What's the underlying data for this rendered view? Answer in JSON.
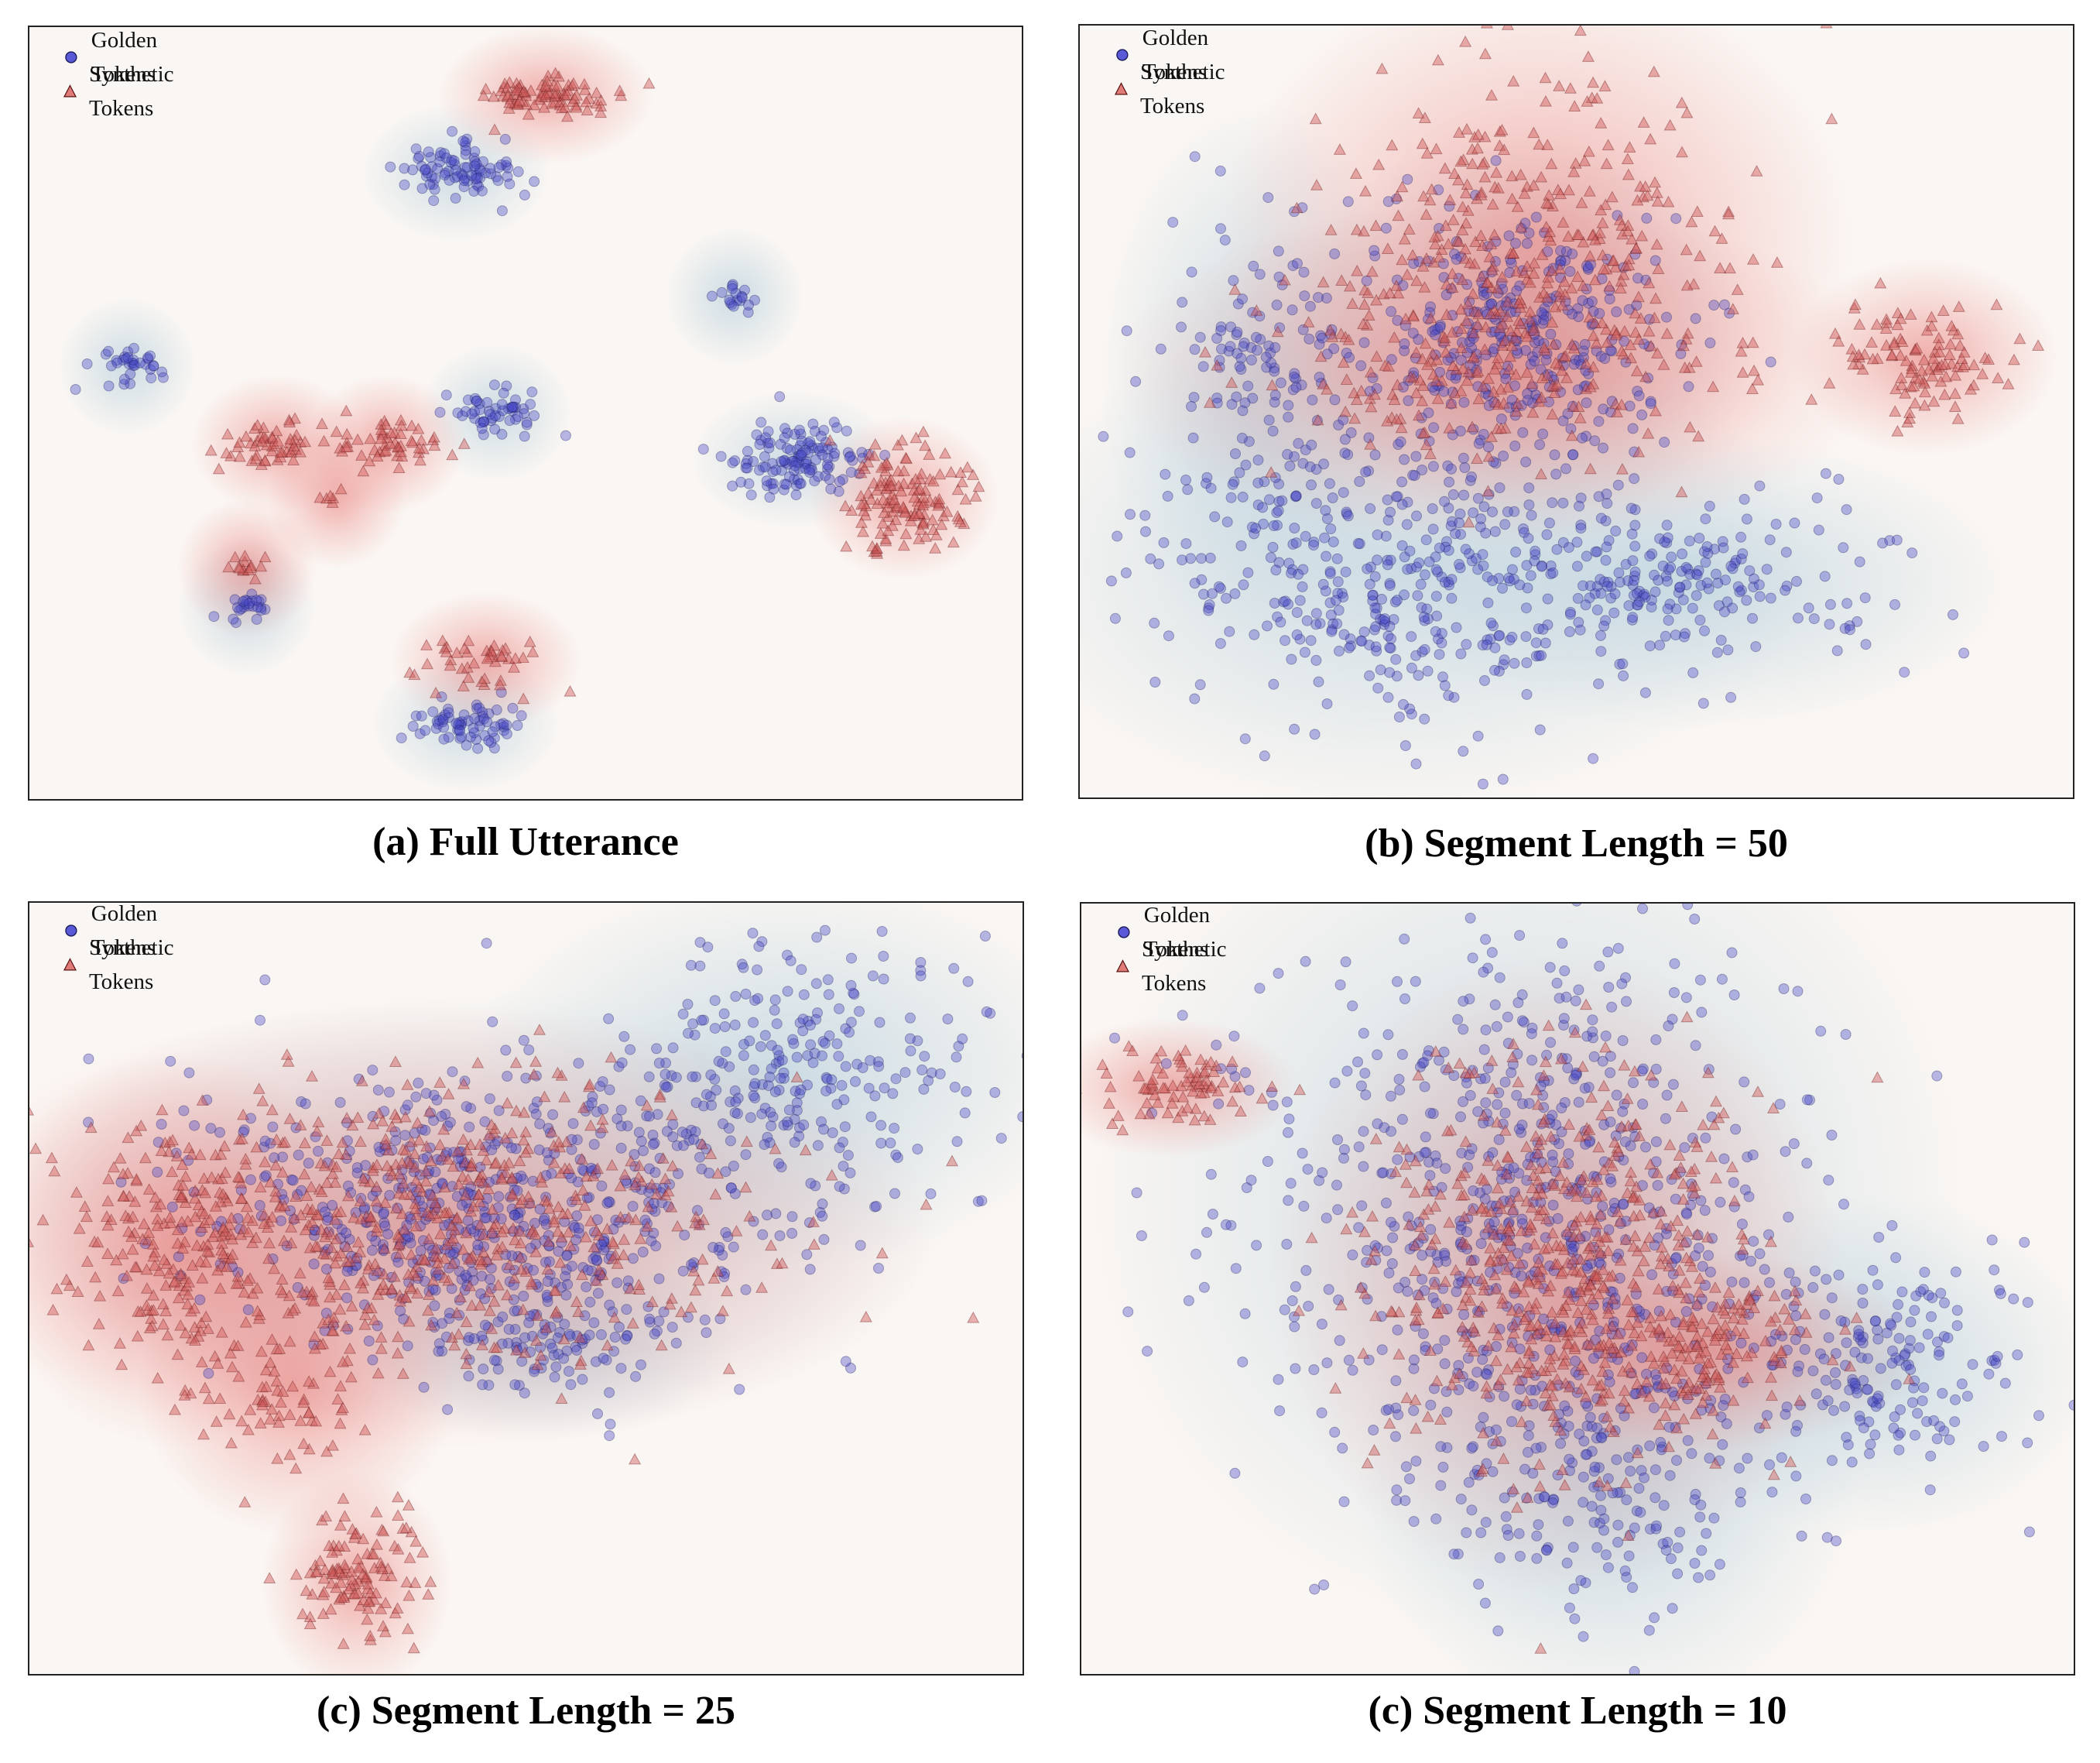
{
  "figure": {
    "legend": {
      "golden_label": "Golden Tokens",
      "synthetic_label": "Synthetic Tokens"
    },
    "colors": {
      "golden": "#4a4ac8",
      "golden_edge": "#1a1a5a",
      "synthetic": "#d05c5c",
      "synthetic_edge": "#6a1a1a",
      "background": "#faf6f3",
      "density_blue": "#a9c8d8",
      "density_red": "#e8736f"
    },
    "marker_shapes": {
      "golden": "circle-icon",
      "synthetic": "triangle-icon"
    }
  },
  "chart_data": [
    {
      "type": "scatter",
      "title": "(a) Full Utterance",
      "xlabel": "",
      "ylabel": "",
      "xlim": [
        0,
        100
      ],
      "ylim": [
        0,
        100
      ],
      "legend_loc": "top-left",
      "series": [
        {
          "name": "Golden Tokens",
          "marker": "circle",
          "clusters": [
            {
              "cx": 43,
              "cy": 81,
              "sx": 3.0,
              "sy": 1.8,
              "n": 90
            },
            {
              "cx": 10,
              "cy": 56,
              "sx": 1.6,
              "sy": 1.1,
              "n": 35
            },
            {
              "cx": 47,
              "cy": 50,
              "sx": 2.4,
              "sy": 1.4,
              "n": 55
            },
            {
              "cx": 71,
              "cy": 65,
              "sx": 1.0,
              "sy": 0.8,
              "n": 18
            },
            {
              "cx": 77,
              "cy": 44,
              "sx": 3.3,
              "sy": 2.2,
              "n": 130
            },
            {
              "cx": 22,
              "cy": 25,
              "sx": 1.0,
              "sy": 1.0,
              "n": 25
            },
            {
              "cx": 44,
              "cy": 10,
              "sx": 3.0,
              "sy": 1.5,
              "n": 70
            }
          ]
        },
        {
          "name": "Synthetic Tokens",
          "marker": "triangle",
          "clusters": [
            {
              "cx": 52,
              "cy": 91,
              "sx": 3.4,
              "sy": 1.3,
              "n": 90
            },
            {
              "cx": 25,
              "cy": 46,
              "sx": 2.7,
              "sy": 1.3,
              "n": 55
            },
            {
              "cx": 36,
              "cy": 46,
              "sx": 2.5,
              "sy": 1.5,
              "n": 55
            },
            {
              "cx": 31,
              "cy": 39,
              "sx": 0.6,
              "sy": 0.5,
              "n": 6
            },
            {
              "cx": 88,
              "cy": 39,
              "sx": 3.0,
              "sy": 3.3,
              "n": 140
            },
            {
              "cx": 22,
              "cy": 30,
              "sx": 1.1,
              "sy": 1.0,
              "n": 14
            },
            {
              "cx": 46,
              "cy": 18,
              "sx": 3.0,
              "sy": 2.0,
              "n": 45
            }
          ]
        }
      ]
    },
    {
      "type": "scatter",
      "title": "(b) Segment Length = 50",
      "xlabel": "",
      "ylabel": "",
      "xlim": [
        0,
        100
      ],
      "ylim": [
        0,
        100
      ],
      "legend_loc": "top-left",
      "series": [
        {
          "name": "Golden Tokens",
          "marker": "circle",
          "clusters": [
            {
              "cx": 44,
              "cy": 60,
              "sx": 7.5,
              "sy": 8.0,
              "n": 320
            },
            {
              "cx": 32,
              "cy": 30,
              "sx": 13.0,
              "sy": 10.0,
              "n": 420
            },
            {
              "cx": 62,
              "cy": 28,
              "sx": 10.0,
              "sy": 6.0,
              "n": 200
            },
            {
              "cx": 18,
              "cy": 55,
              "sx": 5.0,
              "sy": 11.0,
              "n": 130
            }
          ]
        },
        {
          "name": "Synthetic Tokens",
          "marker": "triangle",
          "clusters": [
            {
              "cx": 46,
              "cy": 72,
              "sx": 10.0,
              "sy": 11.0,
              "n": 360
            },
            {
              "cx": 42,
              "cy": 55,
              "sx": 12.0,
              "sy": 7.0,
              "n": 160
            },
            {
              "cx": 85,
              "cy": 57,
              "sx": 4.2,
              "sy": 4.0,
              "n": 110
            }
          ]
        }
      ]
    },
    {
      "type": "scatter",
      "title": "(c) Segment Length = 25",
      "xlabel": "",
      "ylabel": "",
      "xlim": [
        0,
        100
      ],
      "ylim": [
        0,
        100
      ],
      "legend_loc": "top-left",
      "series": [
        {
          "name": "Golden Tokens",
          "marker": "circle",
          "clusters": [
            {
              "cx": 45,
              "cy": 60,
              "sx": 15.0,
              "sy": 9.0,
              "n": 620
            },
            {
              "cx": 76,
              "cy": 78,
              "sx": 10.0,
              "sy": 8.0,
              "n": 260
            },
            {
              "cx": 52,
              "cy": 43,
              "sx": 6.0,
              "sy": 4.0,
              "n": 90
            }
          ]
        },
        {
          "name": "Synthetic Tokens",
          "marker": "triangle",
          "clusters": [
            {
              "cx": 40,
              "cy": 58,
              "sx": 16.0,
              "sy": 9.0,
              "n": 620
            },
            {
              "cx": 15,
              "cy": 55,
              "sx": 6.0,
              "sy": 8.0,
              "n": 180
            },
            {
              "cx": 27,
              "cy": 37,
              "sx": 5.0,
              "sy": 6.0,
              "n": 70
            },
            {
              "cx": 33,
              "cy": 12,
              "sx": 3.0,
              "sy": 4.5,
              "n": 120
            }
          ]
        }
      ]
    },
    {
      "type": "scatter",
      "title": "(c) Segment Length = 10",
      "xlabel": "",
      "ylabel": "",
      "xlim": [
        0,
        100
      ],
      "ylim": [
        0,
        100
      ],
      "legend_loc": "top-left",
      "series": [
        {
          "name": "Golden Tokens",
          "marker": "circle",
          "clusters": [
            {
              "cx": 45,
              "cy": 62,
              "sx": 14.0,
              "sy": 18.0,
              "n": 720
            },
            {
              "cx": 80,
              "cy": 40,
              "sx": 7.0,
              "sy": 7.0,
              "n": 180
            },
            {
              "cx": 53,
              "cy": 25,
              "sx": 8.0,
              "sy": 10.0,
              "n": 220
            }
          ]
        },
        {
          "name": "Synthetic Tokens",
          "marker": "triangle",
          "clusters": [
            {
              "cx": 48,
              "cy": 52,
              "sx": 9.0,
              "sy": 13.0,
              "n": 560
            },
            {
              "cx": 63,
              "cy": 42,
              "sx": 7.0,
              "sy": 4.0,
              "n": 120
            },
            {
              "cx": 9,
              "cy": 76,
              "sx": 4.0,
              "sy": 2.3,
              "n": 80
            }
          ]
        }
      ]
    }
  ]
}
